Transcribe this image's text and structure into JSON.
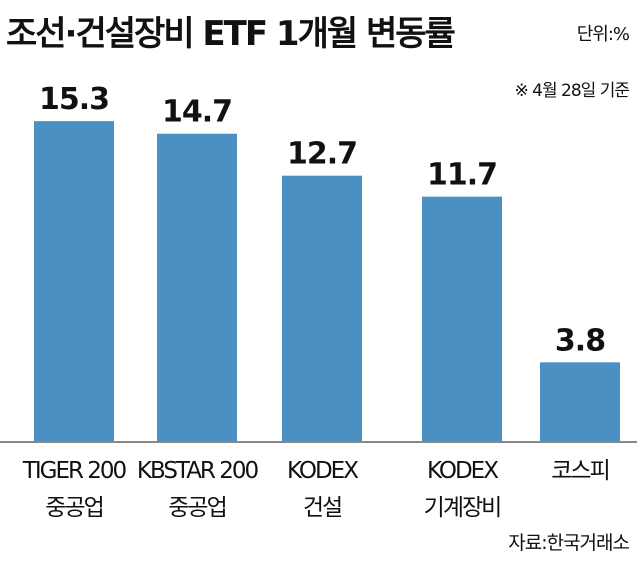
{
  "title": "조선·건설장비 ETF 1개월 변동률",
  "unit": "단위:%",
  "note": "※ 4월 28일 기준",
  "source": "자료:한국거래소",
  "chart_data": {
    "type": "bar",
    "title": "조선·건설장비 ETF 1개월 변동률",
    "categories": [
      [
        "TIGER 200",
        "중공업"
      ],
      [
        "KBSTAR 200",
        "중공업"
      ],
      [
        "KODEX",
        "건설"
      ],
      [
        "KODEX",
        "기계장비"
      ],
      [
        "코스피"
      ]
    ],
    "values": [
      15.3,
      14.7,
      12.7,
      11.7,
      3.8
    ],
    "data_labels": [
      "15.3",
      "14.7",
      "12.7",
      "11.7",
      "3.8"
    ],
    "ylim": [
      0,
      16.5
    ],
    "grid": false,
    "legend": "none",
    "bar_color": "#4a90c2",
    "axis_color": "#888888"
  }
}
